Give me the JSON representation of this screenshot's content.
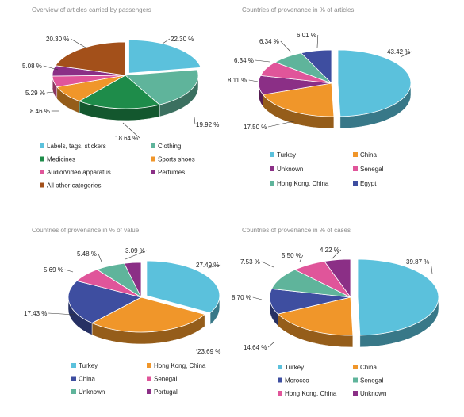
{
  "colors": {
    "sky": "#5bc1dc",
    "green": "#5fb49b",
    "darkgreen": "#1e8c4a",
    "orange": "#f0962a",
    "pink": "#e0559a",
    "purple": "#8b2f86",
    "brown": "#a3501a",
    "navy": "#3e4ea0"
  },
  "chart_data": [
    {
      "type": "pie",
      "title": "Overview of articles carried by passengers",
      "slices": [
        {
          "label": "Labels, tags, stickers",
          "value": 22.3,
          "display": "22.30 %",
          "color": "sky"
        },
        {
          "label": "Clothing",
          "value": 19.92,
          "display": "19.92 %",
          "color": "green"
        },
        {
          "label": "Medicines",
          "value": 18.64,
          "display": "18.64 %",
          "color": "darkgreen"
        },
        {
          "label": "Sports shoes",
          "value": 8.46,
          "display": "8.46 %",
          "color": "orange"
        },
        {
          "label": "Audio/Video apparatus",
          "value": 5.29,
          "display": "5.29 %",
          "color": "pink"
        },
        {
          "label": "Perfumes",
          "value": 5.08,
          "display": "5.08 %",
          "color": "purple"
        },
        {
          "label": "All other categories",
          "value": 20.3,
          "display": "20.30 %",
          "color": "brown"
        }
      ],
      "legend_position": "bottom"
    },
    {
      "type": "pie",
      "title": "Countries of provenance in % of articles",
      "slices": [
        {
          "label": "Turkey",
          "value": 43.42,
          "display": "43.42 %",
          "color": "sky"
        },
        {
          "label": "China",
          "value": 17.5,
          "display": "17.50 %",
          "color": "orange"
        },
        {
          "label": "Unknown",
          "value": 8.11,
          "display": "8.11 %",
          "color": "purple"
        },
        {
          "label": "Senegal",
          "value": 6.34,
          "display": "6.34 %",
          "color": "pink"
        },
        {
          "label": "Hong Kong, China",
          "value": 6.34,
          "display": "6.34 %",
          "color": "green"
        },
        {
          "label": "Egypt",
          "value": 6.01,
          "display": "6.01 %",
          "color": "navy"
        }
      ],
      "legend_position": "bottom"
    },
    {
      "type": "pie",
      "title": "Countries of provenance in % of value",
      "slices": [
        {
          "label": "Turkey",
          "value": 27.49,
          "display": "27.49 %",
          "color": "sky"
        },
        {
          "label": "Hong Kong, China",
          "value": 23.69,
          "display": "23.69 %",
          "color": "orange"
        },
        {
          "label": "China",
          "value": 17.43,
          "display": "17.43 %",
          "color": "navy"
        },
        {
          "label": "Senegal",
          "value": 5.69,
          "display": "5.69 %",
          "color": "pink"
        },
        {
          "label": "Unknown",
          "value": 5.48,
          "display": "5.48 %",
          "color": "green"
        },
        {
          "label": "Portugal",
          "value": 3.09,
          "display": "3.09 %",
          "color": "purple"
        }
      ],
      "legend_position": "bottom"
    },
    {
      "type": "pie",
      "title": "Countries of provenance in % of cases",
      "slices": [
        {
          "label": "Turkey",
          "value": 39.87,
          "display": "39.87 %",
          "color": "sky"
        },
        {
          "label": "China",
          "value": 14.64,
          "display": "14.64 %",
          "color": "orange"
        },
        {
          "label": "Morocco",
          "value": 8.7,
          "display": "8.70 %",
          "color": "navy"
        },
        {
          "label": "Senegal",
          "value": 7.53,
          "display": "7.53 %",
          "color": "green"
        },
        {
          "label": "Hong Kong, China",
          "value": 5.5,
          "display": "5.50 %",
          "color": "pink"
        },
        {
          "label": "Unknown",
          "value": 4.22,
          "display": "4.22 %",
          "color": "purple"
        }
      ],
      "legend_position": "bottom"
    }
  ]
}
